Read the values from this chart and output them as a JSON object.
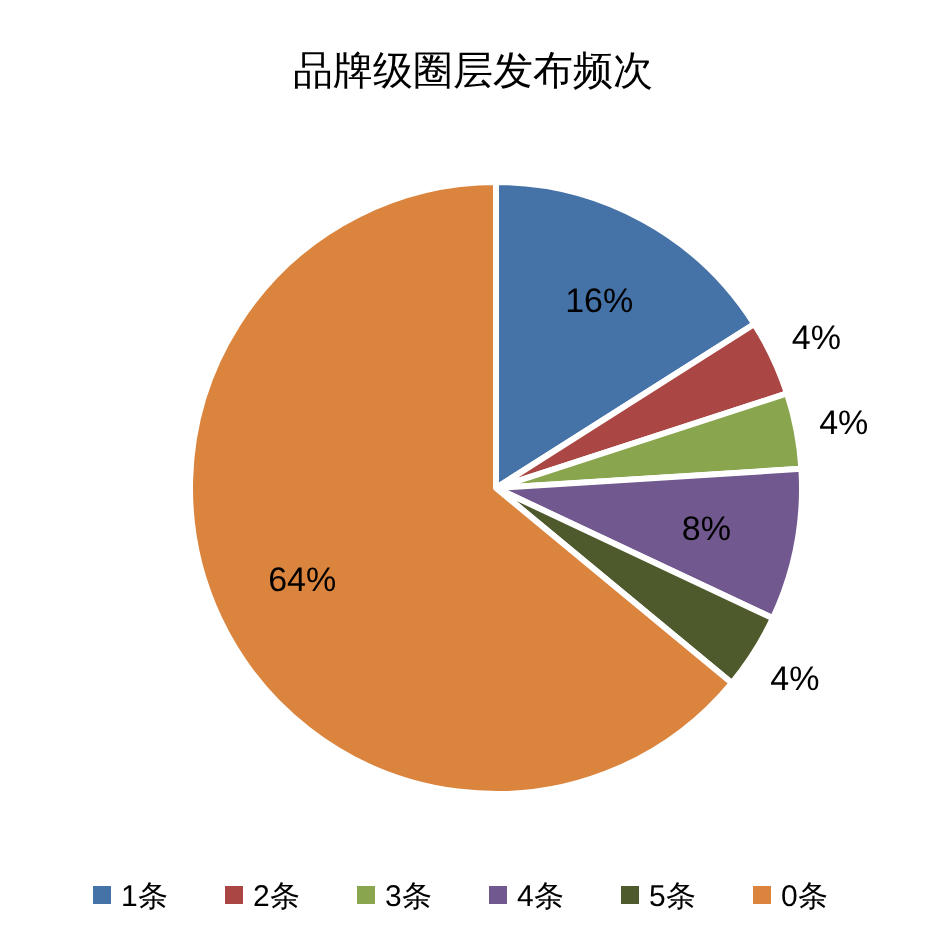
{
  "chart_data": {
    "type": "pie",
    "title": "品牌级圈层发布频次",
    "categories": [
      "1条",
      "2条",
      "3条",
      "4条",
      "5条",
      "0条"
    ],
    "values": [
      16,
      4,
      4,
      8,
      4,
      64
    ],
    "colors": [
      "#4572a7",
      "#aa4643",
      "#89a54e",
      "#71588f",
      "#4e5a2c",
      "#db843d"
    ],
    "value_labels": [
      "16%",
      "4%",
      "4%",
      "8%",
      "4%",
      "64%"
    ],
    "legend": "bottom"
  }
}
